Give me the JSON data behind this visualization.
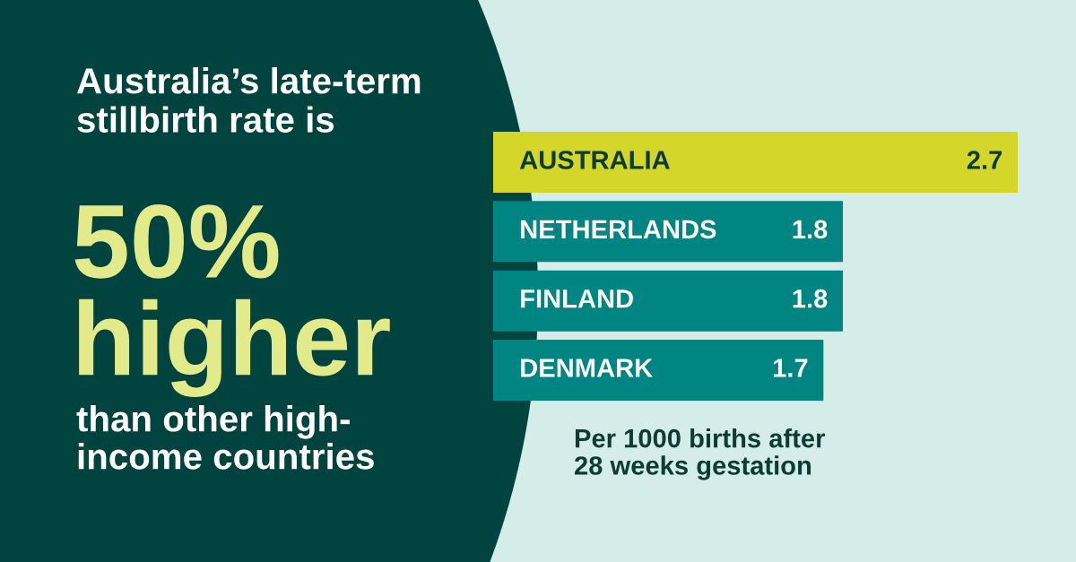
{
  "chart_data": {
    "type": "bar",
    "orientation": "horizontal",
    "title": "Australia’s late-term\nstillbirth rate is",
    "subtitle": "50%\nhigher",
    "categories": [
      "AUSTRALIA",
      "NETHERLANDS",
      "FINLAND",
      "DENMARK"
    ],
    "values": [
      2.7,
      1.8,
      1.8,
      1.7
    ],
    "colors": [
      "#d4d62a",
      "#008583",
      "#008583",
      "#008583"
    ],
    "data_labels": true,
    "annotations": [
      "than other high-\nincome countries",
      "Per 1000 births after\n28 weeks gestation"
    ]
  }
}
